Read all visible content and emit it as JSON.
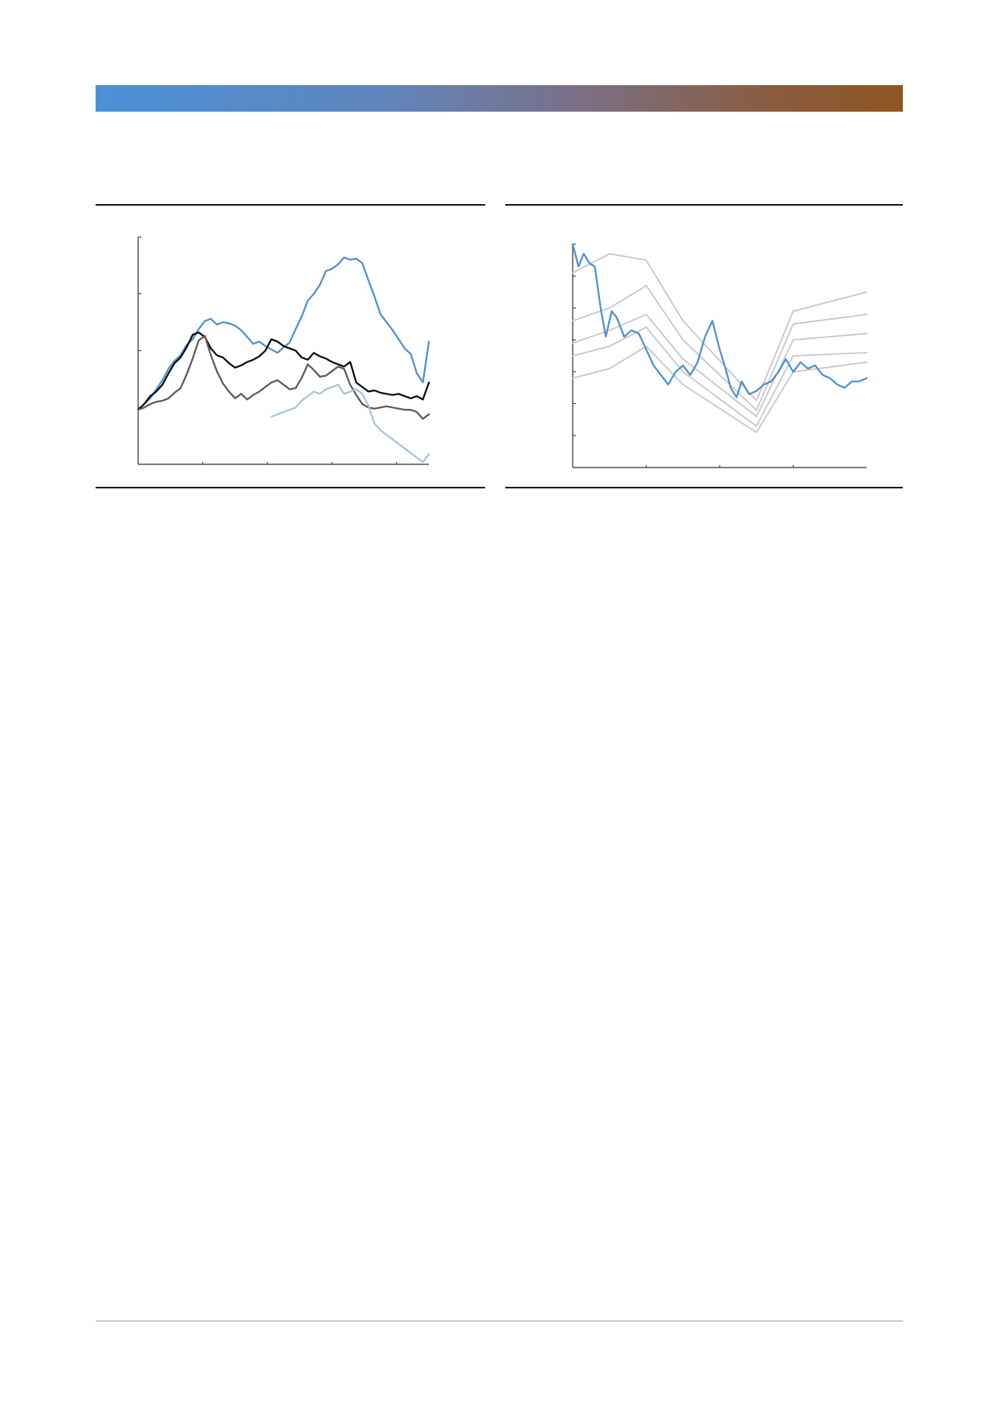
{
  "header": {
    "banner_colors": [
      "#4b90d6",
      "#7a7086",
      "#8d5621"
    ]
  },
  "charts": {
    "left": {
      "chart_data": {
        "type": "line",
        "title": "",
        "xlabel": "",
        "ylabel": "",
        "xlim": [
          0,
          450
        ],
        "ylim": [
          0,
          200
        ],
        "x_ticks": [
          100,
          200,
          300,
          400
        ],
        "y_ticks": [
          0,
          50,
          100,
          150,
          200
        ],
        "tick_labels_visible": false,
        "series": [
          {
            "name": "series-blue",
            "color": "#4f8fd0",
            "start": 0,
            "values": [
              48,
              53,
              58,
              66,
              74,
              84,
              91,
              96,
              105,
              110,
              119,
              126,
              128,
              123,
              125,
              124,
              122,
              118,
              112,
              106,
              108,
              104,
              101,
              98,
              103,
              107,
              119,
              130,
              144,
              150,
              158,
              170,
              172,
              176,
              182,
              180,
              181,
              177,
              162,
              148,
              132,
              125,
              118,
              110,
              102,
              97,
              80,
              72,
              108
            ]
          },
          {
            "name": "series-black",
            "color": "#0a0a0a",
            "start": 0,
            "values": [
              48,
              53,
              60,
              64,
              70,
              80,
              89,
              94,
              103,
              114,
              116,
              112,
              102,
              96,
              94,
              89,
              85,
              87,
              90,
              92,
              95,
              100,
              110,
              108,
              104,
              102,
              100,
              94,
              92,
              98,
              95,
              93,
              90,
              88,
              86,
              90,
              72,
              68,
              64,
              65,
              63,
              62,
              61,
              62,
              60,
              58,
              60,
              57,
              72
            ]
          },
          {
            "name": "series-darkgray",
            "color": "#5a5a5a",
            "start": 0,
            "values": [
              48,
              50,
              53,
              55,
              56,
              58,
              63,
              67,
              79,
              93,
              109,
              113,
              96,
              82,
              71,
              64,
              58,
              62,
              57,
              61,
              64,
              68,
              72,
              74,
              70,
              66,
              67,
              76,
              88,
              83,
              77,
              78,
              82,
              86,
              84,
              70,
              61,
              53,
              50,
              49,
              50,
              51,
              50,
              49,
              48,
              48,
              46,
              40,
              44
            ]
          },
          {
            "name": "series-lightblue",
            "color": "#a6c1e3",
            "start": 22,
            "values": [
              42,
              44,
              46,
              48,
              50,
              56,
              60,
              64,
              62,
              66,
              68,
              70,
              62,
              64,
              66,
              62,
              52,
              36,
              30,
              26,
              22,
              18,
              14,
              10,
              6,
              2,
              9
            ]
          }
        ]
      }
    },
    "right": {
      "chart_data": {
        "type": "line",
        "title": "",
        "xlabel": "",
        "ylabel": "",
        "xlim": [
          0,
          40
        ],
        "ylim": [
          0,
          7
        ],
        "x_ticks": [
          10,
          20,
          30
        ],
        "y_ticks": [
          1,
          2,
          3,
          4,
          5,
          6,
          7
        ],
        "tick_labels_visible": false,
        "series": [
          {
            "name": "band-1",
            "color": "#c8c8c8",
            "x": [
              0,
              5,
              10,
              15,
              25,
              30,
              40
            ],
            "values": [
              6.1,
              6.7,
              6.5,
              4.6,
              2.1,
              4.9,
              5.5
            ]
          },
          {
            "name": "band-2",
            "color": "#c8c8c8",
            "x": [
              0,
              5,
              10,
              15,
              25,
              30,
              40
            ],
            "values": [
              4.6,
              5.0,
              5.7,
              4.0,
              1.8,
              4.5,
              4.8
            ]
          },
          {
            "name": "band-3",
            "color": "#c8c8c8",
            "x": [
              0,
              5,
              10,
              15,
              25,
              30,
              40
            ],
            "values": [
              3.9,
              4.3,
              4.8,
              3.4,
              1.6,
              4.0,
              4.2
            ]
          },
          {
            "name": "band-4",
            "color": "#c8c8c8",
            "x": [
              0,
              5,
              10,
              15,
              25,
              30,
              40
            ],
            "values": [
              3.5,
              3.8,
              4.4,
              3.0,
              1.3,
              3.5,
              3.6
            ]
          },
          {
            "name": "band-5",
            "color": "#c8c8c8",
            "x": [
              0,
              5,
              10,
              15,
              25,
              30,
              40
            ],
            "values": [
              2.8,
              3.1,
              3.8,
              2.6,
              1.1,
              3.0,
              3.3
            ]
          },
          {
            "name": "yield-curve",
            "color": "#4f8fd0",
            "x": [
              0,
              0.8,
              1.5,
              2.3,
              3,
              3.8,
              4.5,
              5.3,
              6,
              7,
              8,
              9,
              10,
              11,
              12,
              13,
              14,
              15,
              16,
              17,
              18,
              19,
              20,
              20.8,
              21.5,
              22.3,
              23,
              24,
              25,
              26,
              27,
              28,
              29,
              30,
              31,
              32,
              33,
              34,
              35,
              36,
              37,
              38,
              39,
              40
            ],
            "values": [
              7.0,
              6.3,
              6.7,
              6.4,
              6.3,
              5.0,
              4.1,
              4.9,
              4.7,
              4.1,
              4.3,
              4.2,
              3.7,
              3.2,
              2.9,
              2.6,
              3.0,
              3.2,
              2.9,
              3.3,
              4.1,
              4.6,
              3.7,
              3.1,
              2.5,
              2.2,
              2.7,
              2.3,
              2.4,
              2.6,
              2.7,
              3.0,
              3.4,
              3.0,
              3.3,
              3.1,
              3.2,
              2.9,
              2.8,
              2.6,
              2.5,
              2.7,
              2.7,
              2.8
            ]
          }
        ]
      }
    }
  }
}
